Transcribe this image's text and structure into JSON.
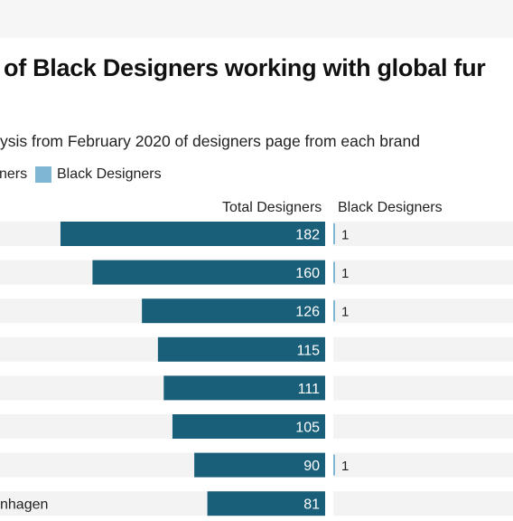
{
  "title": "of Black Designers working with global fur",
  "subtitle": "ysis from February 2020 of designers page from each brand",
  "legend": [
    {
      "label": "ners",
      "color": "#1a5f7a"
    },
    {
      "label": "Black Designers",
      "color": "#7fb6d3"
    }
  ],
  "columns": {
    "total_label": "Total Designers",
    "black_label": "Black Designers"
  },
  "colors": {
    "total_bar": "#1a5f7a",
    "black_bar": "#7fb6d3",
    "row_background": "#f3f3f3",
    "value_text_on_bar": "#ffffff",
    "value_text": "#222222"
  },
  "chart_data": {
    "type": "bar",
    "title": "of Black Designers working with global fur",
    "subtitle": "ysis from February 2020 of designers page from each brand",
    "categories": [
      "",
      "",
      "",
      "",
      "",
      "",
      "",
      "nhagen"
    ],
    "series": [
      {
        "name": "Total Designers",
        "values": [
          182,
          160,
          126,
          115,
          111,
          105,
          90,
          81
        ]
      },
      {
        "name": "Black Designers",
        "values": [
          1,
          1,
          1,
          0,
          0,
          0,
          1,
          0
        ]
      }
    ],
    "black_labels": [
      "1",
      "1",
      "1",
      "",
      "",
      "",
      "1",
      ""
    ],
    "xlim_total": [
      0,
      190
    ],
    "grid": false,
    "legend_position": "top-left"
  }
}
